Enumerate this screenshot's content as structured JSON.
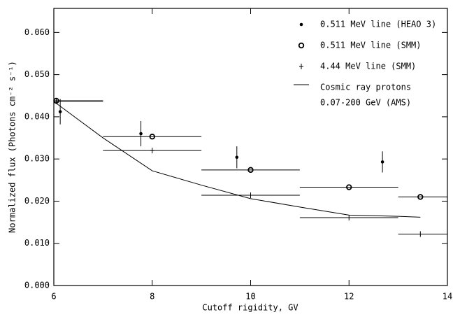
{
  "chart_data": {
    "type": "scatter",
    "x_label": "Cutoff rigidity, GV",
    "y_label": "Normalized flux (Photons cm⁻² s⁻¹)",
    "xlim": [
      6,
      14
    ],
    "xticks": [
      6,
      8,
      10,
      12,
      14
    ],
    "ylim": [
      0,
      0.0657
    ],
    "yticks": [
      {
        "value": 0,
        "label": "0.000"
      },
      {
        "value": 0.01,
        "label": "0.010"
      },
      {
        "value": 0.02,
        "label": "0.020"
      },
      {
        "value": 0.03,
        "label": "0.030"
      },
      {
        "value": 0.04,
        "label": "0.040"
      },
      {
        "value": 0.05,
        "label": "0.050"
      },
      {
        "value": 0.06,
        "label": "0.060"
      }
    ],
    "legend": "upper right",
    "series": [
      {
        "name": [
          "0.511 MeV line (HEAO 3)"
        ],
        "marker": "dot",
        "color": "#000000",
        "x": [
          6.13,
          7.77,
          9.72,
          12.68
        ],
        "values": [
          0.0412,
          0.036,
          0.0304,
          0.0293
        ],
        "errors": [
          0.003,
          0.003,
          0.0026,
          0.0025
        ]
      },
      {
        "name": [
          "0.511 MeV line (SMM)"
        ],
        "marker": "circle",
        "color": "#000000",
        "x": [
          6.05,
          8,
          10,
          12,
          13.45
        ],
        "values": [
          0.0438,
          0.0353,
          0.0274,
          0.0233,
          0.021
        ],
        "x_low": [
          6,
          7,
          9,
          11,
          13
        ],
        "x_high": [
          7,
          9,
          11,
          13,
          14
        ]
      },
      {
        "name": [
          "4.44 MeV line (SMM)"
        ],
        "marker": "plus",
        "color": "#000000",
        "x": [
          6.05,
          8,
          10,
          12,
          13.45
        ],
        "values": [
          0.0437,
          0.032,
          0.0214,
          0.0161,
          0.0122
        ],
        "x_low": [
          6,
          7,
          9,
          11,
          13
        ],
        "x_high": [
          7,
          9,
          11,
          13,
          14
        ]
      },
      {
        "name": [
          "Cosmic ray protons",
          "0.07-200 GeV (AMS)"
        ],
        "marker": "line",
        "color": "#000000",
        "x": [
          6.05,
          7,
          8,
          9,
          10,
          11,
          12,
          13,
          13.45
        ],
        "values": [
          0.0432,
          0.035,
          0.0272,
          0.0238,
          0.0206,
          0.0186,
          0.0167,
          0.0164,
          0.0162
        ]
      }
    ]
  }
}
